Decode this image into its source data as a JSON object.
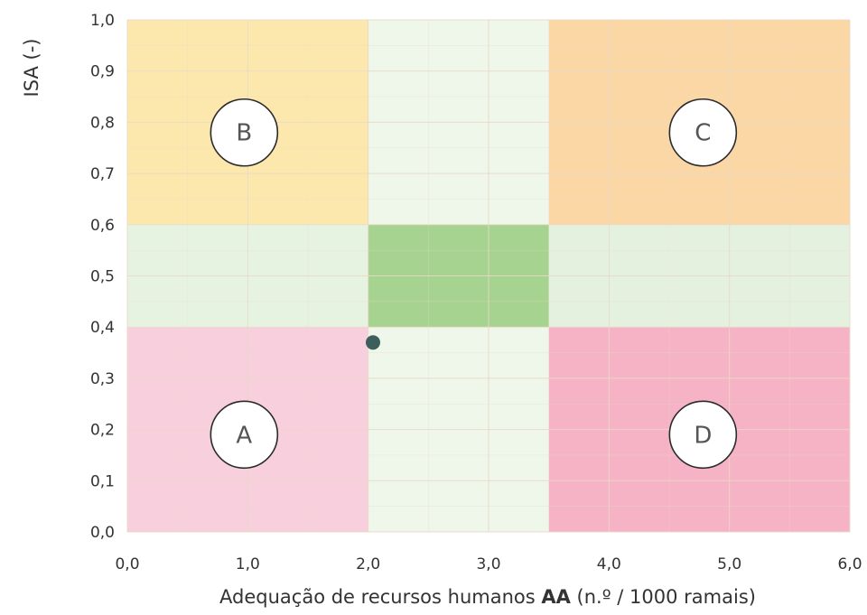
{
  "chart_data": {
    "type": "scatter",
    "title": "",
    "xlabel_prefix": "Adequação de recursos humanos ",
    "xlabel_bold": "AA",
    "xlabel_suffix": " (n.º / 1000 ramais)",
    "ylabel": "ISA (-)",
    "xlim": [
      0,
      6
    ],
    "ylim": [
      0,
      1
    ],
    "x_ticks": [
      "0,0",
      "1,0",
      "2,0",
      "3,0",
      "4,0",
      "5,0",
      "6,0"
    ],
    "y_ticks": [
      "0,0",
      "0,1",
      "0,2",
      "0,3",
      "0,4",
      "0,5",
      "0,6",
      "0,7",
      "0,8",
      "0,9",
      "1,0"
    ],
    "grid": true,
    "zones": [
      {
        "x": [
          0,
          2
        ],
        "y": [
          0,
          0.4
        ],
        "color": "#f8cfdc"
      },
      {
        "x": [
          3.5,
          6
        ],
        "y": [
          0,
          0.4
        ],
        "color": "#f5b3c5"
      },
      {
        "x": [
          0,
          2
        ],
        "y": [
          0.6,
          1
        ],
        "color": "#fce8ad"
      },
      {
        "x": [
          3.5,
          6
        ],
        "y": [
          0.6,
          1
        ],
        "color": "#fbd7a5"
      },
      {
        "x": [
          0,
          2
        ],
        "y": [
          0.4,
          0.6
        ],
        "color": "#e7f3e1"
      },
      {
        "x": [
          3.5,
          6
        ],
        "y": [
          0.4,
          0.6
        ],
        "color": "#e5f1df"
      },
      {
        "x": [
          2,
          3.5
        ],
        "y": [
          0.6,
          1
        ],
        "color": "#eef7ea"
      },
      {
        "x": [
          2,
          3.5
        ],
        "y": [
          0,
          0.4
        ],
        "color": "#eef7ea"
      },
      {
        "x": [
          2,
          3.5
        ],
        "y": [
          0.4,
          0.6
        ],
        "color": "#a6d390"
      }
    ],
    "zone_labels": [
      {
        "text": "B",
        "x": 0.97,
        "y": 0.78
      },
      {
        "text": "C",
        "x": 4.78,
        "y": 0.78
      },
      {
        "text": "A",
        "x": 0.97,
        "y": 0.19
      },
      {
        "text": "D",
        "x": 4.78,
        "y": 0.19
      }
    ],
    "points": [
      {
        "x": 2.04,
        "y": 0.37
      }
    ],
    "colors": {
      "point": "#3d5f5b",
      "grid": "#e9d9c8",
      "text": "#333333"
    }
  }
}
